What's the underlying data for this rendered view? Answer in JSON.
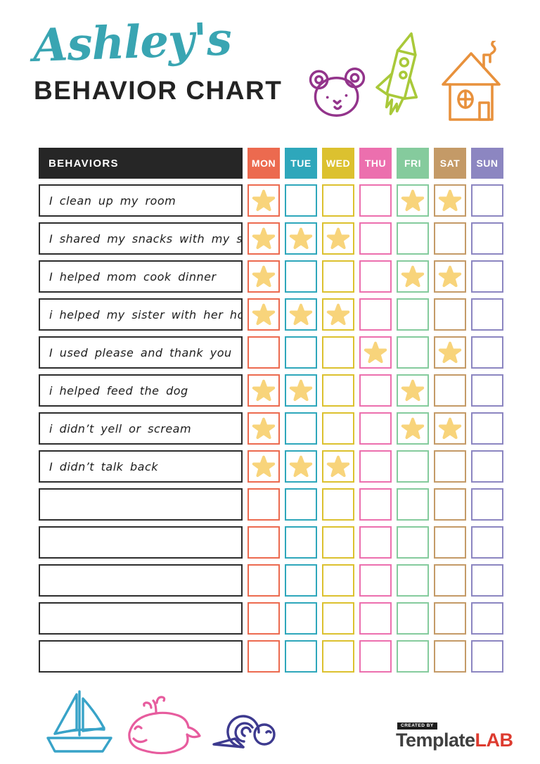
{
  "header": {
    "title": "Ashley's",
    "subtitle": "BEHAVIOR CHART",
    "icons": [
      {
        "name": "bear",
        "color": "#93348B"
      },
      {
        "name": "rocket",
        "color": "#A9C93A"
      },
      {
        "name": "house",
        "color": "#E8913C"
      }
    ]
  },
  "table": {
    "corner_label": "BEHAVIORS",
    "days": [
      {
        "label": "MON",
        "color": "#EC6A4F"
      },
      {
        "label": "TUE",
        "color": "#2EA7BB"
      },
      {
        "label": "WED",
        "color": "#DCC12F"
      },
      {
        "label": "THU",
        "color": "#EC6FAE"
      },
      {
        "label": "FRI",
        "color": "#85CB9D"
      },
      {
        "label": "SAT",
        "color": "#C49A67"
      },
      {
        "label": "SUN",
        "color": "#8C86C1"
      }
    ],
    "star_color": "#F8D47B",
    "rows": [
      {
        "label": "I clean up my room",
        "stars": [
          "MON",
          "FRI",
          "SAT"
        ]
      },
      {
        "label": "I shared my snacks with my sister",
        "stars": [
          "MON",
          "TUE",
          "WED"
        ]
      },
      {
        "label": "I helped mom cook dinner",
        "stars": [
          "MON",
          "FRI",
          "SAT"
        ]
      },
      {
        "label": "i helped my sister with her homework",
        "stars": [
          "MON",
          "TUE",
          "WED"
        ]
      },
      {
        "label": "I used please and thank you",
        "stars": [
          "THU",
          "SAT"
        ]
      },
      {
        "label": "i helped feed the dog",
        "stars": [
          "MON",
          "TUE",
          "FRI"
        ]
      },
      {
        "label": "i didn’t yell or scream",
        "stars": [
          "MON",
          "FRI",
          "SAT"
        ]
      },
      {
        "label": "I didn’t talk back",
        "stars": [
          "MON",
          "TUE",
          "WED"
        ]
      },
      {
        "label": "",
        "stars": []
      },
      {
        "label": "",
        "stars": []
      },
      {
        "label": "",
        "stars": []
      },
      {
        "label": "",
        "stars": []
      },
      {
        "label": "",
        "stars": []
      }
    ]
  },
  "footer": {
    "icons": [
      {
        "name": "sailboat",
        "color": "#38A3C8"
      },
      {
        "name": "whale",
        "color": "#E75C9E"
      },
      {
        "name": "snail",
        "color": "#3D3A8F"
      }
    ],
    "logo": {
      "created_by": "CREATED BY",
      "brand": "Template",
      "brand_accent": "LAB",
      "accent_color": "#DD3B2F"
    }
  }
}
